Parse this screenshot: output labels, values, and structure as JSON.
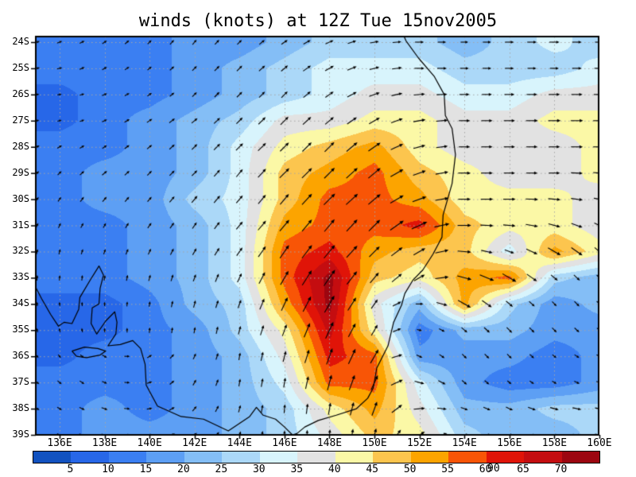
{
  "title": "winds (knots) at 12Z Tue 15nov2005",
  "chart_data": {
    "type": "heatmap",
    "variant": "filled-contour wind speed map with wind vectors and coastline overlay",
    "title": "winds (knots) at 12Z Tue 15nov2005",
    "xlabel": "",
    "ylabel": "",
    "x_tick_labels": [
      "136E",
      "138E",
      "140E",
      "142E",
      "144E",
      "146E",
      "148E",
      "150E",
      "152E",
      "154E",
      "156E",
      "158E",
      "160E"
    ],
    "y_tick_labels": [
      "24S",
      "25S",
      "26S",
      "27S",
      "28S",
      "29S",
      "30S",
      "31S",
      "32S",
      "33S",
      "34S",
      "35S",
      "36S",
      "37S",
      "38S",
      "39S"
    ],
    "lon_ticks": [
      136,
      138,
      140,
      142,
      144,
      146,
      148,
      150,
      152,
      154,
      156,
      158,
      160
    ],
    "lat_ticks": [
      24,
      25,
      26,
      27,
      28,
      29,
      30,
      31,
      32,
      33,
      34,
      35,
      36,
      37,
      38,
      39
    ],
    "gridlines": "dotted",
    "legend_position": "bottom",
    "vector_grid_spacing_deg": 1,
    "wind_speed_kt": [
      [
        13,
        13,
        13,
        17,
        17,
        22,
        27,
        27,
        27,
        22,
        27,
        32,
        27
      ],
      [
        13,
        13,
        13,
        17,
        22,
        27,
        32,
        32,
        32,
        27,
        27,
        27,
        32
      ],
      [
        8,
        13,
        13,
        17,
        22,
        27,
        32,
        37,
        37,
        32,
        32,
        37,
        37
      ],
      [
        8,
        13,
        17,
        22,
        27,
        37,
        37,
        42,
        42,
        37,
        37,
        42,
        42
      ],
      [
        13,
        13,
        17,
        22,
        32,
        42,
        47,
        52,
        42,
        37,
        37,
        37,
        42
      ],
      [
        13,
        17,
        17,
        22,
        32,
        47,
        52,
        57,
        47,
        42,
        37,
        37,
        42
      ],
      [
        13,
        17,
        17,
        27,
        32,
        47,
        57,
        57,
        52,
        42,
        42,
        42,
        37
      ],
      [
        13,
        13,
        17,
        22,
        32,
        52,
        57,
        57,
        62,
        47,
        42,
        42,
        37
      ],
      [
        13,
        13,
        17,
        22,
        32,
        57,
        62,
        52,
        47,
        47,
        32,
        52,
        42
      ],
      [
        13,
        13,
        17,
        22,
        32,
        57,
        72,
        47,
        42,
        52,
        57,
        27,
        22
      ],
      [
        8,
        8,
        13,
        22,
        27,
        52,
        72,
        37,
        22,
        52,
        27,
        17,
        22
      ],
      [
        8,
        8,
        13,
        17,
        27,
        42,
        67,
        42,
        12,
        22,
        22,
        17,
        17
      ],
      [
        8,
        13,
        13,
        17,
        22,
        37,
        62,
        57,
        17,
        17,
        17,
        12,
        17
      ],
      [
        13,
        13,
        13,
        17,
        22,
        32,
        57,
        57,
        32,
        17,
        12,
        12,
        17
      ],
      [
        13,
        17,
        13,
        17,
        22,
        27,
        42,
        52,
        37,
        22,
        22,
        27,
        27
      ],
      [
        13,
        17,
        17,
        17,
        22,
        27,
        37,
        47,
        42,
        27,
        22,
        22,
        27
      ]
    ],
    "wind_dir_deg": [
      [
        70,
        55,
        45,
        40,
        45,
        55,
        65,
        80,
        90,
        90,
        90,
        90,
        90
      ],
      [
        75,
        60,
        50,
        45,
        45,
        50,
        60,
        75,
        90,
        90,
        90,
        90,
        90
      ],
      [
        80,
        65,
        55,
        45,
        45,
        45,
        55,
        70,
        85,
        90,
        90,
        90,
        90
      ],
      [
        75,
        65,
        55,
        50,
        45,
        45,
        50,
        60,
        80,
        90,
        90,
        90,
        90
      ],
      [
        60,
        55,
        50,
        45,
        45,
        45,
        45,
        55,
        75,
        90,
        90,
        90,
        90
      ],
      [
        45,
        50,
        45,
        45,
        40,
        45,
        45,
        50,
        70,
        90,
        90,
        90,
        95
      ],
      [
        35,
        40,
        40,
        40,
        40,
        40,
        45,
        50,
        70,
        90,
        90,
        95,
        100
      ],
      [
        25,
        30,
        35,
        35,
        40,
        40,
        40,
        45,
        65,
        90,
        95,
        105,
        115
      ],
      [
        15,
        20,
        25,
        30,
        35,
        35,
        40,
        45,
        60,
        95,
        110,
        120,
        130
      ],
      [
        5,
        10,
        15,
        20,
        25,
        30,
        35,
        40,
        60,
        105,
        120,
        130,
        135
      ],
      [
        -5,
        0,
        10,
        15,
        20,
        25,
        30,
        35,
        90,
        120,
        130,
        135,
        135
      ],
      [
        -15,
        -5,
        5,
        10,
        15,
        20,
        25,
        30,
        105,
        130,
        135,
        135,
        130
      ],
      [
        140,
        120,
        60,
        25,
        10,
        15,
        20,
        30,
        115,
        135,
        135,
        130,
        120
      ],
      [
        130,
        115,
        70,
        30,
        10,
        10,
        15,
        25,
        105,
        130,
        130,
        120,
        110
      ],
      [
        120,
        110,
        80,
        40,
        15,
        5,
        10,
        20,
        85,
        110,
        115,
        105,
        100
      ],
      [
        115,
        105,
        85,
        50,
        20,
        0,
        5,
        15,
        60,
        85,
        90,
        95,
        100
      ]
    ],
    "colorbar": {
      "labels": [
        "5",
        "10",
        "15",
        "20",
        "25",
        "30",
        "35",
        "40",
        "45",
        "50",
        "55",
        "60",
        "65",
        "70"
      ],
      "levels": [
        5,
        10,
        15,
        20,
        25,
        30,
        35,
        40,
        45,
        50,
        55,
        60,
        65,
        70
      ],
      "colors": [
        "#1252c0",
        "#2767e8",
        "#3b7ff2",
        "#5d9ff4",
        "#84bef6",
        "#abd8f8",
        "#d8f4fc",
        "#e2e2e2",
        "#fbf8a6",
        "#fcc54e",
        "#fca400",
        "#f85506",
        "#e01408",
        "#c40d10",
        "#9c0610"
      ]
    },
    "reference_vector_label": "90",
    "styles": {
      "background": "#ffffff",
      "arrow_color": "#000000",
      "coastline_color": "#000000",
      "gridline_color": "#a6a6a6",
      "border_color": "#000000"
    },
    "coastline": {
      "mainland": [
        [
          134.9,
          33.3
        ],
        [
          135.2,
          33.8
        ],
        [
          135.6,
          34.4
        ],
        [
          135.95,
          34.85
        ],
        [
          136.2,
          34.7
        ],
        [
          136.55,
          34.75
        ],
        [
          136.85,
          34.2
        ],
        [
          136.9,
          33.75
        ],
        [
          137.35,
          33.1
        ],
        [
          137.75,
          32.55
        ],
        [
          137.95,
          32.9
        ],
        [
          137.8,
          33.4
        ],
        [
          137.75,
          34.0
        ],
        [
          137.45,
          34.15
        ],
        [
          137.4,
          34.75
        ],
        [
          137.65,
          35.15
        ],
        [
          138.05,
          34.65
        ],
        [
          138.45,
          34.3
        ],
        [
          138.55,
          34.7
        ],
        [
          138.5,
          35.15
        ],
        [
          138.15,
          35.6
        ],
        [
          138.7,
          35.55
        ],
        [
          139.25,
          35.4
        ],
        [
          139.6,
          35.7
        ],
        [
          139.8,
          36.3
        ],
        [
          139.85,
          37.1
        ],
        [
          140.35,
          37.9
        ],
        [
          141.4,
          38.3
        ],
        [
          142.4,
          38.4
        ],
        [
          143.5,
          38.85
        ],
        [
          144.45,
          38.3
        ],
        [
          144.75,
          37.95
        ],
        [
          145.05,
          38.25
        ],
        [
          145.6,
          38.4
        ],
        [
          146.0,
          38.7
        ],
        [
          146.35,
          39.0
        ],
        [
          146.55,
          38.95
        ],
        [
          146.9,
          38.7
        ],
        [
          147.5,
          38.45
        ],
        [
          148.3,
          38.25
        ],
        [
          149.2,
          38.0
        ],
        [
          149.7,
          37.6
        ],
        [
          149.95,
          37.2
        ],
        [
          150.1,
          36.45
        ],
        [
          150.6,
          35.6
        ],
        [
          150.85,
          34.7
        ],
        [
          151.2,
          34.05
        ],
        [
          151.35,
          33.6
        ],
        [
          151.7,
          33.1
        ],
        [
          152.15,
          32.7
        ],
        [
          152.6,
          32.1
        ],
        [
          153.0,
          31.45
        ],
        [
          153.05,
          30.6
        ],
        [
          153.45,
          29.4
        ],
        [
          153.6,
          28.3
        ],
        [
          153.45,
          27.3
        ],
        [
          153.15,
          26.8
        ],
        [
          153.1,
          26.0
        ],
        [
          152.65,
          25.3
        ],
        [
          151.95,
          24.6
        ],
        [
          151.4,
          23.95
        ],
        [
          151.3,
          23.75
        ]
      ],
      "kangaroo_island": [
        [
          136.55,
          35.8
        ],
        [
          137.1,
          35.65
        ],
        [
          137.7,
          35.7
        ],
        [
          138.05,
          35.8
        ],
        [
          137.8,
          35.95
        ],
        [
          137.2,
          36.05
        ],
        [
          136.75,
          36.0
        ],
        [
          136.55,
          35.8
        ]
      ]
    }
  }
}
